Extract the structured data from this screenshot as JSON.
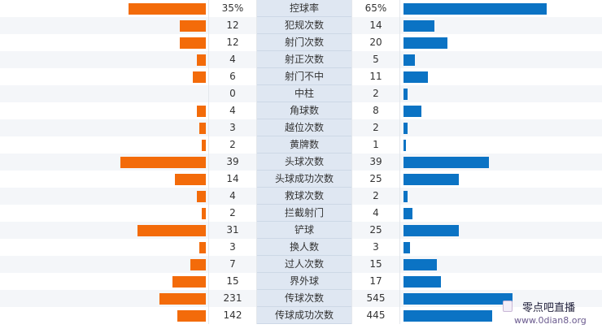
{
  "colors": {
    "home": "#f36b0a",
    "away": "#0b73c4"
  },
  "stats": [
    {
      "name": "控球率",
      "home": "35%",
      "away": "65%",
      "home_level": 35,
      "away_level": 65
    },
    {
      "name": "犯规次数",
      "home": "12",
      "away": "14",
      "home_level": 12,
      "away_level": 14
    },
    {
      "name": "射门次数",
      "home": "12",
      "away": "20",
      "home_level": 12,
      "away_level": 20
    },
    {
      "name": "射正次数",
      "home": "4",
      "away": "5",
      "home_level": 4,
      "away_level": 5
    },
    {
      "name": "射门不中",
      "home": "6",
      "away": "11",
      "home_level": 6,
      "away_level": 11
    },
    {
      "name": "中柱",
      "home": "0",
      "away": "2",
      "home_level": 0,
      "away_level": 2
    },
    {
      "name": "角球数",
      "home": "4",
      "away": "8",
      "home_level": 4,
      "away_level": 8
    },
    {
      "name": "越位次数",
      "home": "3",
      "away": "2",
      "home_level": 3,
      "away_level": 2
    },
    {
      "name": "黄牌数",
      "home": "2",
      "away": "1",
      "home_level": 2,
      "away_level": 1
    },
    {
      "name": "头球次数",
      "home": "39",
      "away": "39",
      "home_level": 39,
      "away_level": 39
    },
    {
      "name": "头球成功次数",
      "home": "14",
      "away": "25",
      "home_level": 14,
      "away_level": 25
    },
    {
      "name": "救球次数",
      "home": "4",
      "away": "2",
      "home_level": 4,
      "away_level": 2
    },
    {
      "name": "拦截射门",
      "home": "2",
      "away": "4",
      "home_level": 2,
      "away_level": 4
    },
    {
      "name": "铲球",
      "home": "31",
      "away": "25",
      "home_level": 31,
      "away_level": 25
    },
    {
      "name": "换人数",
      "home": "3",
      "away": "3",
      "home_level": 3,
      "away_level": 3
    },
    {
      "name": "过人次数",
      "home": "7",
      "away": "15",
      "home_level": 7,
      "away_level": 15
    },
    {
      "name": "界外球",
      "home": "15",
      "away": "17",
      "home_level": 15,
      "away_level": 17
    },
    {
      "name": "传球次数",
      "home": "231",
      "away": "545",
      "home_level": 231,
      "away_level": 545
    },
    {
      "name": "传球成功次数",
      "home": "142",
      "away": "445",
      "home_level": 142,
      "away_level": 445
    }
  ],
  "watermark": {
    "site_name": "零点吧直播",
    "url": "www.0dian8.org"
  }
}
